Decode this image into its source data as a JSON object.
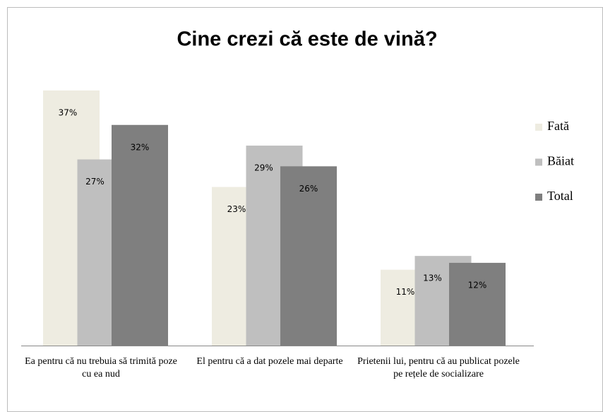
{
  "chart_data": {
    "type": "bar",
    "title": "Cine crezi că este de vină?",
    "categories": [
      "Ea pentru că nu trebuia să trimită poze cu ea nud",
      "El pentru că a dat pozele mai departe",
      "Prietenii lui, pentru că au publicat pozele pe rețele de socializare"
    ],
    "series": [
      {
        "name": "Fată",
        "color": "#eeece1",
        "values": [
          37,
          23,
          11
        ],
        "value_labels": [
          "37%",
          "23%",
          "11%"
        ]
      },
      {
        "name": "Băiat",
        "color": "#bfbfbf",
        "values": [
          27,
          29,
          13
        ],
        "value_labels": [
          "27%",
          "29%",
          "13%"
        ]
      },
      {
        "name": "Total",
        "color": "#7f7f7f",
        "values": [
          32,
          26,
          12
        ],
        "value_labels": [
          "32%",
          "26%",
          "12%"
        ]
      }
    ]
  }
}
